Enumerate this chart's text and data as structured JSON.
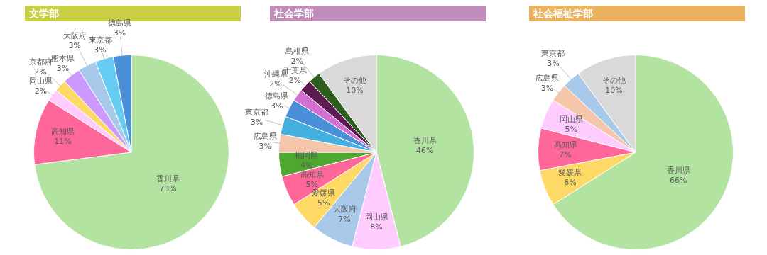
{
  "chart_data": [
    {
      "type": "pie",
      "title": "文学部",
      "categories": [
        "香川県",
        "高知県",
        "岡山県",
        "京都府",
        "熊本県",
        "大阪府",
        "東京都",
        "徳島県"
      ],
      "values": [
        73,
        11,
        2,
        2,
        3,
        3,
        3,
        3
      ],
      "value_labels": [
        "73%",
        "11%",
        "2%",
        "2%",
        "3%",
        "3%",
        "3%",
        "3%"
      ],
      "colors": [
        "#b3e3a1",
        "#ff6699",
        "#ffccff",
        "#ffd966",
        "#cc99ff",
        "#a9c9ea",
        "#66ccf2",
        "#4a90d9"
      ]
    },
    {
      "type": "pie",
      "title": "社会学部",
      "categories": [
        "香川県",
        "岡山県",
        "大阪府",
        "愛媛県",
        "高知県",
        "福岡県",
        "広島県",
        "東京都",
        "徳島県",
        "沖縄県",
        "千葉県",
        "島根県",
        "その他"
      ],
      "values": [
        46,
        8,
        7,
        5,
        5,
        4,
        3,
        3,
        3,
        2,
        2,
        2,
        10
      ],
      "value_labels": [
        "46%",
        "8%",
        "7%",
        "5%",
        "5%",
        "4%",
        "3%",
        "3%",
        "3%",
        "2%",
        "2%",
        "2%",
        "10%"
      ],
      "colors": [
        "#b3e3a1",
        "#ffccff",
        "#a9c9ea",
        "#ffd966",
        "#ff6699",
        "#4ea72e",
        "#f5c6aa",
        "#44b0e0",
        "#4a90d9",
        "#d36fd0",
        "#5e1a52",
        "#2d5e1e",
        "#d9d9d9"
      ]
    },
    {
      "type": "pie",
      "title": "社会福祉学部",
      "categories": [
        "香川県",
        "愛媛県",
        "高知県",
        "岡山県",
        "広島県",
        "東京都",
        "その他"
      ],
      "values": [
        66,
        6,
        7,
        5,
        3,
        3,
        10
      ],
      "value_labels": [
        "66%",
        "6%",
        "7%",
        "5%",
        "3%",
        "3%",
        "10%"
      ],
      "colors": [
        "#b3e3a1",
        "#ffd966",
        "#ff6699",
        "#ffccff",
        "#f5c6aa",
        "#a9c9ea",
        "#d9d9d9"
      ]
    }
  ]
}
